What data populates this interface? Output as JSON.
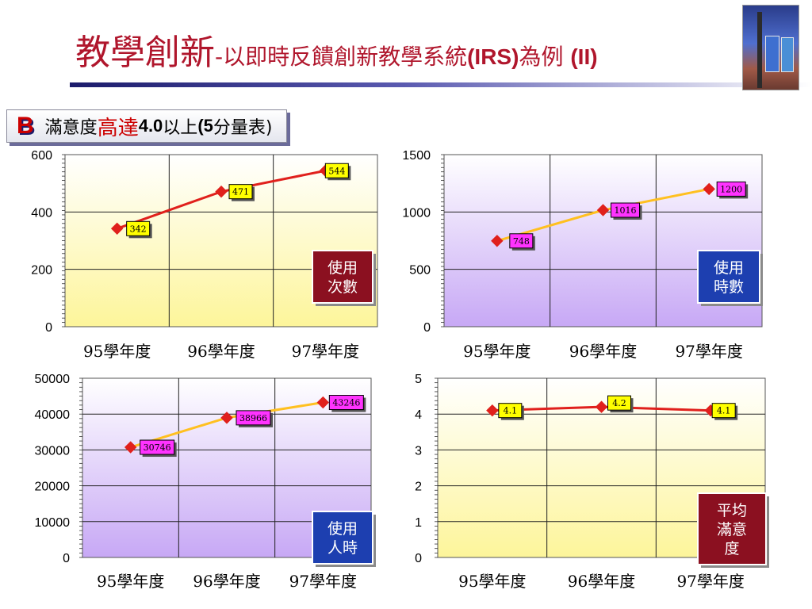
{
  "slide": {
    "title_main": "教學創新",
    "title_sub_pre": "-以即時反饋創新教學系統",
    "title_sub_bold1": "(IRS)",
    "title_sub_mid": "為例 ",
    "title_sub_bold2": "(II)",
    "bullet": "B",
    "subtitle_pre": "滿意度",
    "subtitle_red": "高達",
    "subtitle_num": "4.0",
    "subtitle_mid": "以上",
    "subtitle_paren": "(5",
    "subtitle_post": "分量表)"
  },
  "chart_data": [
    {
      "type": "line",
      "categories": [
        "95學年度",
        "96學年度",
        "97學年度"
      ],
      "values": [
        342,
        471,
        544
      ],
      "data_labels": [
        "342",
        "471",
        "544"
      ],
      "ylim": [
        0,
        600
      ],
      "yticks": [
        "0",
        "200",
        "400",
        "600"
      ],
      "label_box": "使用\n次數",
      "line_color": "#e0201c",
      "marker_color": "#e0201c",
      "data_label_bg": "#ffff00",
      "plot_bg_top": "#ffffff",
      "plot_bg_bottom": "#fdf59a",
      "label_box_bg": "#8b1020",
      "grid": true
    },
    {
      "type": "line",
      "categories": [
        "95學年度",
        "96學年度",
        "97學年度"
      ],
      "values": [
        748,
        1016,
        1200
      ],
      "data_labels": [
        "748",
        "1016",
        "1200"
      ],
      "ylim": [
        0,
        1500
      ],
      "yticks": [
        "0",
        "500",
        "1000",
        "1500"
      ],
      "label_box": "使用\n時數",
      "line_color": "#ffc020",
      "marker_color": "#e0201c",
      "data_label_bg": "#ff33ff",
      "plot_bg_top": "#ffffff",
      "plot_bg_bottom": "#c7a8f5",
      "label_box_bg": "#1d3fb0",
      "grid": true
    },
    {
      "type": "line",
      "categories": [
        "95學年度",
        "96學年度",
        "97學年度"
      ],
      "values": [
        30746,
        38966,
        43246
      ],
      "data_labels": [
        "30746",
        "38966",
        "43246"
      ],
      "ylim": [
        0,
        50000
      ],
      "yticks": [
        "0",
        "10000",
        "20000",
        "30000",
        "40000",
        "50000"
      ],
      "label_box": "使用\n人時",
      "line_color": "#ffc020",
      "marker_color": "#e0201c",
      "data_label_bg": "#ff33ff",
      "plot_bg_top": "#ffffff",
      "plot_bg_bottom": "#c7a8f5",
      "label_box_bg": "#1d3fb0",
      "grid": true
    },
    {
      "type": "line",
      "categories": [
        "95學年度",
        "96學年度",
        "97學年度"
      ],
      "values": [
        4.1,
        4.2,
        4.1
      ],
      "data_labels": [
        "4.1",
        "4.2",
        "4.1"
      ],
      "ylim": [
        0,
        5
      ],
      "yticks": [
        "0",
        "1",
        "2",
        "3",
        "4",
        "5"
      ],
      "label_box": "平均\n滿意\n度",
      "line_color": "#e0201c",
      "marker_color": "#e0201c",
      "data_label_bg": "#ffff00",
      "plot_bg_top": "#ffffff",
      "plot_bg_bottom": "#fdf59a",
      "label_box_bg": "#8b1020",
      "grid": true
    }
  ]
}
